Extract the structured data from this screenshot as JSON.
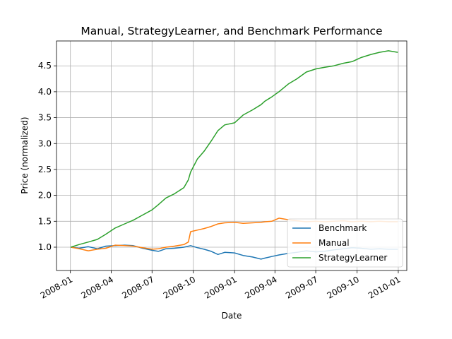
{
  "chart_data": {
    "type": "line",
    "title": "Manual, StrategyLearner, and Benchmark Performance",
    "xlabel": "Date",
    "ylabel": "Price (normalized)",
    "xlim": [
      "2007-12-01",
      "2010-01-20"
    ],
    "ylim": [
      0.55,
      4.98
    ],
    "x_ticks": [
      "2008-01",
      "2008-04",
      "2008-07",
      "2008-10",
      "2009-01",
      "2009-04",
      "2009-07",
      "2009-10",
      "2010-01"
    ],
    "y_ticks": [
      1.0,
      1.5,
      2.0,
      2.5,
      3.0,
      3.5,
      4.0,
      4.5
    ],
    "grid": true,
    "legend_position": "lower-right",
    "series": [
      {
        "name": "Benchmark",
        "color": "#1f77b4",
        "x": [
          "2008-01-02",
          "2008-01-20",
          "2008-02-10",
          "2008-03-01",
          "2008-03-20",
          "2008-04-10",
          "2008-05-01",
          "2008-05-20",
          "2008-06-10",
          "2008-07-01",
          "2008-07-15",
          "2008-08-01",
          "2008-08-20",
          "2008-09-10",
          "2008-09-25",
          "2008-10-10",
          "2008-10-25",
          "2008-11-10",
          "2008-11-25",
          "2008-12-10",
          "2009-01-01",
          "2009-01-20",
          "2009-02-10",
          "2009-03-01",
          "2009-03-10",
          "2009-03-25",
          "2009-04-10",
          "2009-05-01",
          "2009-05-20",
          "2009-06-10",
          "2009-07-01",
          "2009-07-20",
          "2009-08-10",
          "2009-09-01",
          "2009-09-20",
          "2009-10-10",
          "2009-11-01",
          "2009-11-20",
          "2009-12-10",
          "2009-12-31"
        ],
        "y": [
          1.0,
          0.98,
          1.01,
          0.97,
          1.02,
          1.03,
          1.04,
          1.03,
          0.98,
          0.94,
          0.92,
          0.97,
          0.98,
          1.0,
          1.03,
          0.99,
          0.96,
          0.92,
          0.86,
          0.9,
          0.89,
          0.84,
          0.81,
          0.77,
          0.79,
          0.82,
          0.85,
          0.88,
          0.9,
          0.93,
          0.91,
          0.92,
          0.95,
          0.97,
          0.99,
          0.98,
          0.96,
          0.97,
          0.96,
          0.96
        ]
      },
      {
        "name": "Manual",
        "color": "#ff7f0e",
        "x": [
          "2008-01-02",
          "2008-01-20",
          "2008-02-10",
          "2008-03-01",
          "2008-03-20",
          "2008-04-10",
          "2008-05-01",
          "2008-05-20",
          "2008-06-10",
          "2008-07-01",
          "2008-07-15",
          "2008-08-01",
          "2008-08-20",
          "2008-09-10",
          "2008-09-20",
          "2008-09-25",
          "2008-10-10",
          "2008-10-25",
          "2008-11-10",
          "2008-11-25",
          "2008-12-10",
          "2009-01-01",
          "2009-01-20",
          "2009-02-10",
          "2009-03-01",
          "2009-03-10",
          "2009-03-25",
          "2009-04-10",
          "2009-05-01",
          "2009-05-20",
          "2009-06-10",
          "2009-07-01",
          "2009-07-20",
          "2009-08-10",
          "2009-09-01",
          "2009-09-20",
          "2009-10-10",
          "2009-11-01",
          "2009-11-20",
          "2009-12-10",
          "2009-12-31"
        ],
        "y": [
          1.0,
          0.97,
          0.93,
          0.96,
          0.98,
          1.04,
          1.03,
          1.02,
          0.99,
          0.96,
          0.97,
          1.0,
          1.02,
          1.05,
          1.1,
          1.3,
          1.33,
          1.36,
          1.4,
          1.45,
          1.47,
          1.48,
          1.46,
          1.47,
          1.48,
          1.49,
          1.5,
          1.56,
          1.53,
          1.51,
          1.49,
          1.5,
          1.49,
          1.5,
          1.51,
          1.49,
          1.5,
          1.49,
          1.5,
          1.49,
          1.49
        ]
      },
      {
        "name": "StrategyLearner",
        "color": "#2ca02c",
        "x": [
          "2008-01-02",
          "2008-01-20",
          "2008-02-10",
          "2008-03-01",
          "2008-03-20",
          "2008-04-10",
          "2008-05-01",
          "2008-05-20",
          "2008-06-10",
          "2008-07-01",
          "2008-07-15",
          "2008-08-01",
          "2008-08-20",
          "2008-09-10",
          "2008-09-20",
          "2008-09-25",
          "2008-10-10",
          "2008-10-25",
          "2008-11-10",
          "2008-11-25",
          "2008-12-10",
          "2009-01-01",
          "2009-01-20",
          "2009-02-10",
          "2009-03-01",
          "2009-03-10",
          "2009-03-25",
          "2009-04-10",
          "2009-05-01",
          "2009-05-20",
          "2009-06-10",
          "2009-07-01",
          "2009-07-20",
          "2009-08-10",
          "2009-09-01",
          "2009-09-20",
          "2009-10-10",
          "2009-11-01",
          "2009-11-20",
          "2009-12-10",
          "2009-12-31"
        ],
        "y": [
          1.0,
          1.05,
          1.1,
          1.15,
          1.25,
          1.37,
          1.45,
          1.52,
          1.62,
          1.72,
          1.82,
          1.95,
          2.03,
          2.15,
          2.3,
          2.45,
          2.7,
          2.85,
          3.05,
          3.25,
          3.36,
          3.4,
          3.55,
          3.65,
          3.75,
          3.82,
          3.9,
          4.0,
          4.15,
          4.25,
          4.38,
          4.44,
          4.47,
          4.5,
          4.55,
          4.58,
          4.66,
          4.72,
          4.76,
          4.79,
          4.76
        ]
      }
    ]
  }
}
